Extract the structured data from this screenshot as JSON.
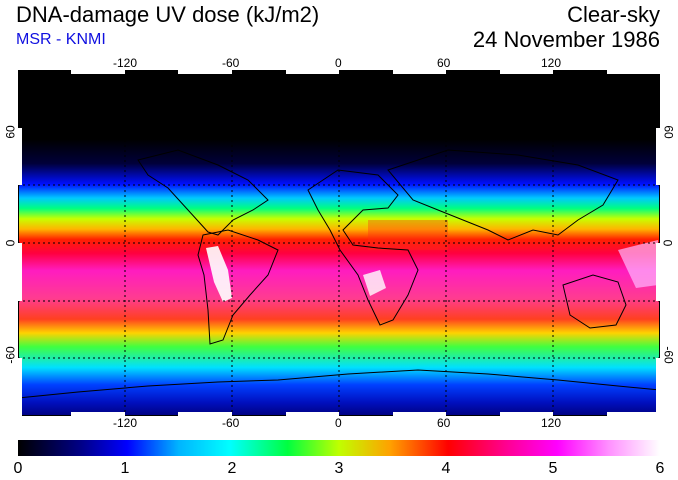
{
  "header": {
    "title": "DNA-damage UV dose (kJ/m2)",
    "credit": "MSR - KNMI",
    "condition": "Clear-sky",
    "date": "24 November 1986"
  },
  "map": {
    "lon_ticks": [
      "-120",
      "-60",
      "0",
      "60",
      "120"
    ],
    "lat_ticks_left": [
      "60",
      "0",
      "-60"
    ],
    "lat_ticks_right": [
      "60",
      "0",
      "-60"
    ]
  },
  "colorbar": {
    "labels": [
      "0",
      "1",
      "2",
      "3",
      "4",
      "5",
      "6"
    ],
    "colors": [
      "#000000",
      "#0000ff",
      "#00ffff",
      "#00ff00",
      "#ffff00",
      "#ff0000",
      "#ff00ff",
      "#ffffff"
    ]
  }
}
